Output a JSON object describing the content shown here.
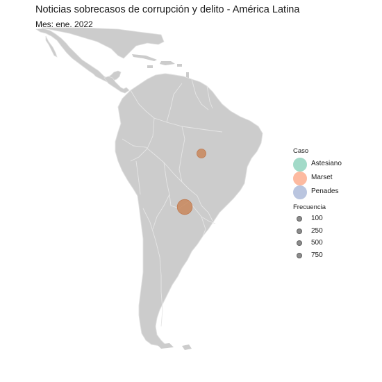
{
  "title": "Noticias sobrecasos de corrupción y delito - América Latina",
  "subtitle": "Mes: ene. 2022",
  "legend": {
    "case_title": "Caso",
    "cases": [
      {
        "label": "Astesiano",
        "color": "#66c2a5"
      },
      {
        "label": "Marset",
        "color": "#fc8d62"
      },
      {
        "label": "Penades",
        "color": "#8da0cb"
      }
    ],
    "freq_title": "Frecuencia",
    "frequencies": [
      "100",
      "250",
      "500",
      "750"
    ]
  },
  "markers": [
    {
      "case": "Marset",
      "location": "Paraguay",
      "frequency": 750,
      "color": "#c8865b"
    },
    {
      "case": "Marset",
      "location": "Brasil",
      "frequency": 100,
      "color": "#c8865b"
    }
  ],
  "colors": {
    "land": "#cccccc",
    "border": "#e0e0e0"
  }
}
